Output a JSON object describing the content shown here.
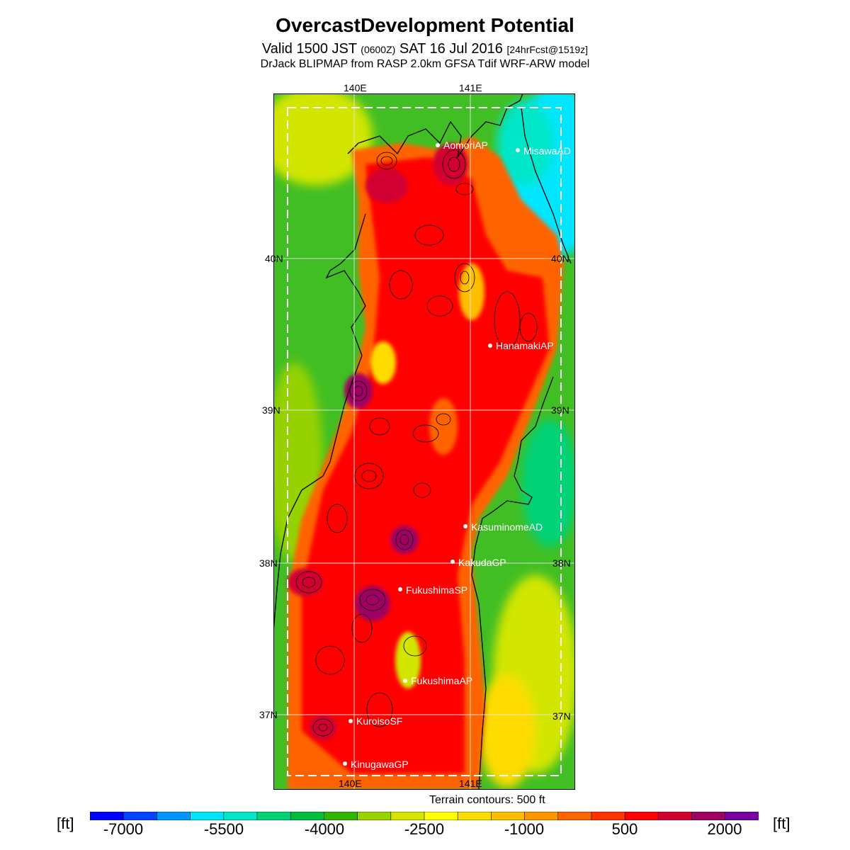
{
  "header": {
    "title": "OvercastDevelopment Potential",
    "valid_prefix": "Valid 1500 JST",
    "utc": "(0600Z)",
    "date": "SAT 16 Jul 2016",
    "forecast": "[24hrFcst@1519z]",
    "model": "DrJack BLIPMAP from RASP 2.0km GFSA Tdif WRF-ARW model"
  },
  "map": {
    "lon_labels": [
      "140E",
      "141E"
    ],
    "lat_labels": [
      "40N",
      "39N",
      "38N",
      "37N"
    ],
    "stations": [
      {
        "name": "AomoriAP"
      },
      {
        "name": "MisawaAD"
      },
      {
        "name": "HanamakiAP"
      },
      {
        "name": "KasuminomeAD"
      },
      {
        "name": "KakudaGP"
      },
      {
        "name": "FukushimaSP"
      },
      {
        "name": "FukushimaAP"
      },
      {
        "name": "KuroisoSF"
      },
      {
        "name": "KinugawaGP"
      }
    ],
    "terrain_note": "Terrain contours: 500 ft"
  },
  "colorbar": {
    "unit": "[ft]",
    "tick_labels": [
      "-7000",
      "-5500",
      "-4000",
      "-2500",
      "-1000",
      "500",
      "2000"
    ],
    "colors": [
      "#0000ff",
      "#0044ff",
      "#0096ff",
      "#00e6ff",
      "#00e6c8",
      "#00d278",
      "#00be3c",
      "#32b400",
      "#96d200",
      "#d2e600",
      "#ffff00",
      "#ffdc00",
      "#ffbe00",
      "#ff9600",
      "#ff6400",
      "#ff3200",
      "#ff0000",
      "#d20032",
      "#a00064",
      "#7800a0"
    ]
  }
}
